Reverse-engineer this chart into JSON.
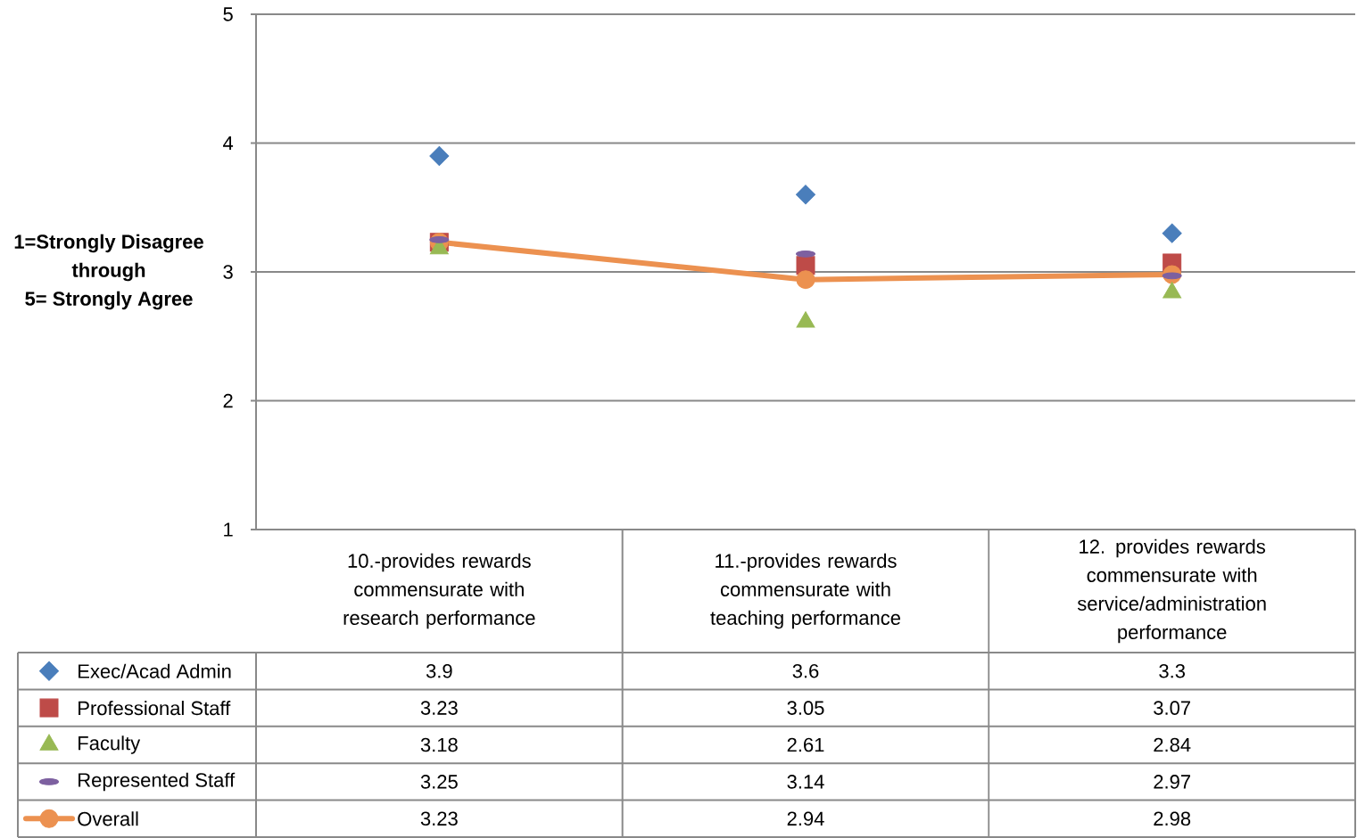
{
  "chart_data": {
    "type": "scatter",
    "ylabel": "1=Strongly Disagree\nthrough\n5= Strongly Agree",
    "categories": [
      "10.-provides rewards commensurate with research performance",
      "11.-provides rewards commensurate with teaching performance",
      "12. provides rewards commensurate with service/administration performance"
    ],
    "series": [
      {
        "name": "Exec/Acad Admin",
        "color": "#4a7ebb",
        "marker": "diamond",
        "values": [
          3.9,
          3.6,
          3.3
        ]
      },
      {
        "name": "Professional Staff",
        "color": "#be4b48",
        "marker": "square",
        "values": [
          3.23,
          3.05,
          3.07
        ]
      },
      {
        "name": "Faculty",
        "color": "#98b954",
        "marker": "triangle",
        "values": [
          3.18,
          2.61,
          2.84
        ]
      },
      {
        "name": "Represented Staff",
        "color": "#7d60a0",
        "values": [
          3.25,
          3.14,
          2.97
        ]
      },
      {
        "name": "Overall",
        "type": "line",
        "color": "#ec9150",
        "marker": "circle",
        "values": [
          3.23,
          2.94,
          2.98
        ]
      }
    ],
    "ylim": [
      1,
      5
    ],
    "yticks": [
      1,
      2,
      3,
      4,
      5
    ],
    "grid": "y",
    "legend": "bottom",
    "data_labels": true
  }
}
